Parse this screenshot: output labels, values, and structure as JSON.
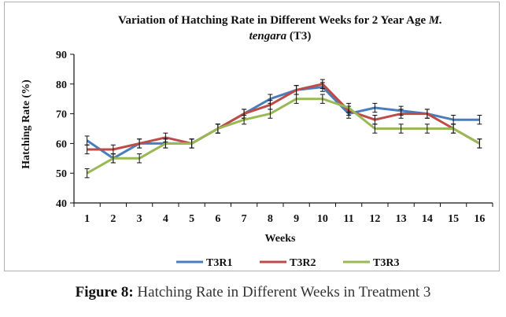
{
  "chart_data": {
    "type": "line",
    "title_line1": "Variation of Hatching Rate in Different Weeks for 2 Year Age ",
    "title_italic1": "M.",
    "title_italic2": "tengara",
    "title_line2_rest": " (T3)",
    "xlabel": "Weeks",
    "ylabel": "Hatching Rate (%)",
    "ylim": [
      40,
      90
    ],
    "yticks": [
      40,
      50,
      60,
      70,
      80,
      90
    ],
    "categories": [
      "1",
      "2",
      "3",
      "4",
      "5",
      "6",
      "7",
      "8",
      "9",
      "10",
      "11",
      "12",
      "13",
      "14",
      "15",
      "16"
    ],
    "series": [
      {
        "name": "T3R1",
        "color": "#4a7ebb",
        "values": [
          61,
          55,
          60,
          60,
          60,
          65,
          70,
          75,
          78,
          79,
          70,
          72,
          71,
          70,
          68,
          68
        ]
      },
      {
        "name": "T3R2",
        "color": "#be4b48",
        "values": [
          58,
          58,
          60,
          62,
          60,
          65,
          70,
          73,
          78,
          80,
          71,
          68,
          70,
          70,
          65,
          60
        ]
      },
      {
        "name": "T3R3",
        "color": "#98b954",
        "values": [
          50,
          55,
          55,
          60,
          60,
          65,
          68,
          70,
          75,
          75,
          72,
          65,
          65,
          65,
          65,
          60
        ]
      }
    ],
    "error": 1.5,
    "legend_position": "bottom"
  },
  "caption": {
    "label": "Figure 8:",
    "text": " Hatching Rate in Different Weeks in Treatment 3"
  }
}
